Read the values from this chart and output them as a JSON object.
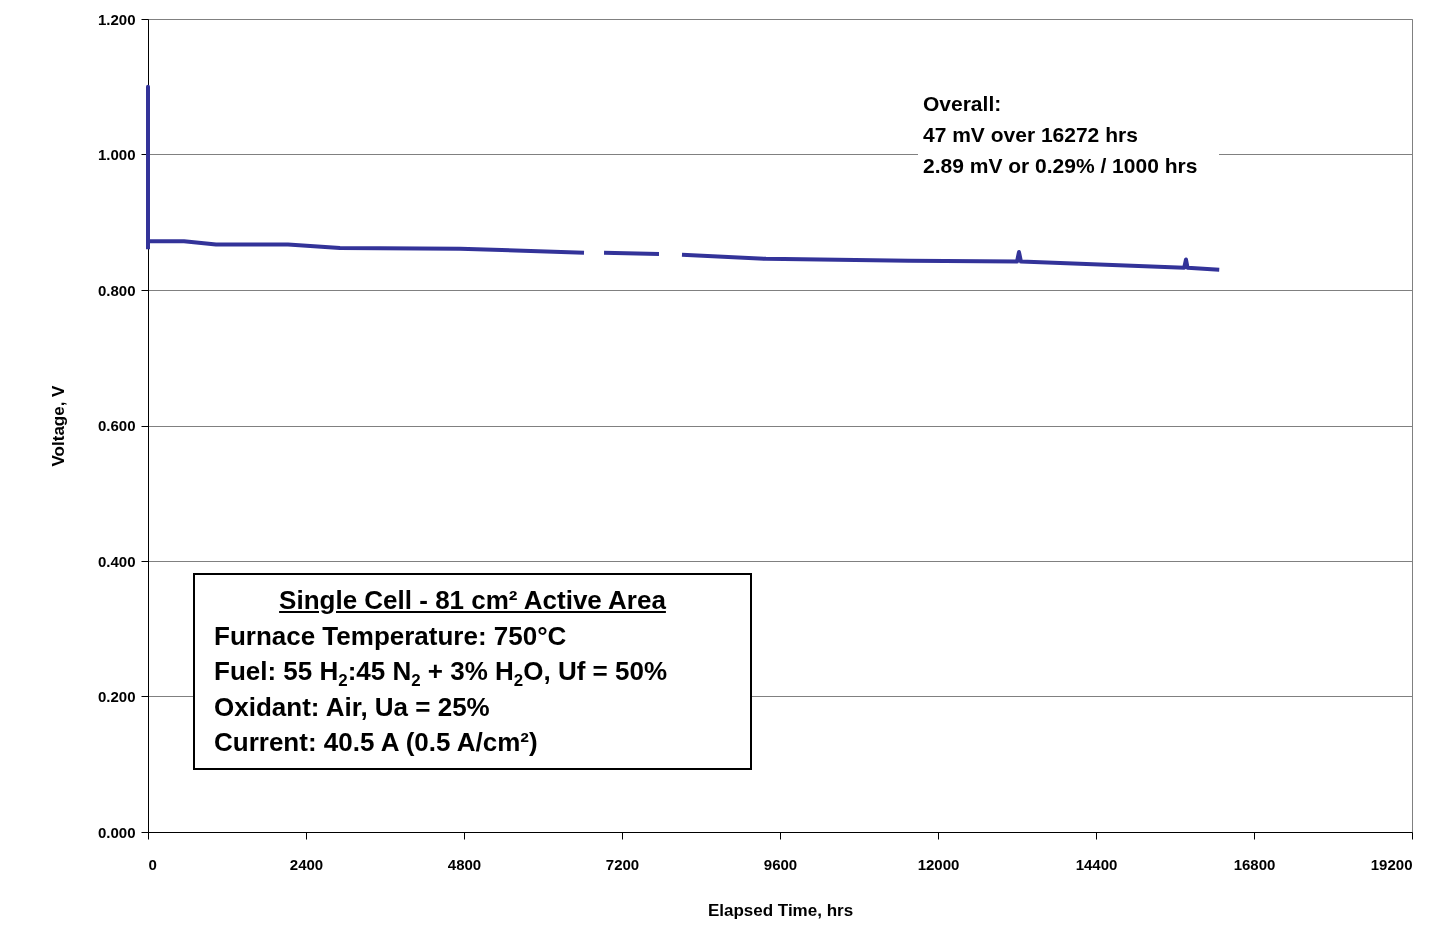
{
  "chart_data": {
    "type": "line",
    "xlabel": "Elapsed Time, hrs",
    "ylabel": "Voltage, V",
    "x": [
      0,
      0,
      0,
      30,
      547,
      1033,
      2127,
      2916,
      4739,
      6623,
      6700,
      6927,
      7762,
      7900,
      8111,
      9387,
      11560,
      13200,
      13230,
      13260,
      15740,
      15767,
      15790,
      16272
    ],
    "series": [
      {
        "color": "#333399",
        "values": [
          0.86,
          1.1,
          0.872,
          0.872,
          0.872,
          0.867,
          0.867,
          0.862,
          0.861,
          0.855,
          null,
          0.855,
          0.853,
          null,
          0.852,
          0.846,
          0.843,
          0.842,
          0.856,
          0.842,
          0.833,
          0.845,
          0.833,
          0.83
        ]
      }
    ],
    "xlim": [
      0,
      19200
    ],
    "xticks": [
      0,
      2400,
      4800,
      7200,
      9600,
      12000,
      14400,
      16800,
      19200
    ],
    "ylim": [
      0,
      1.2
    ],
    "yticks": [
      {
        "value": 0,
        "label": "0.000"
      },
      {
        "value": 0.2,
        "label": "0.200"
      },
      {
        "value": 0.4,
        "label": "0.400"
      },
      {
        "value": 0.6,
        "label": "0.600"
      },
      {
        "value": 0.8,
        "label": "0.800"
      },
      {
        "value": 1.0,
        "label": "1.000"
      },
      {
        "value": 1.2,
        "label": "1.200"
      }
    ],
    "grid": "y",
    "marker": "none",
    "line_style": "solid",
    "annotations": [
      "Overall:\n47 mV over 16272 hrs\n2.89 mV or 0.29% / 1000 hrs",
      "Single Cell - 81 cm² Active Area\nFurnace Temperature: 750°C\nFuel: 55 H$_{2}$:45 N$_{2}$ + 3% H$_{2}$O, Uf = 50%\nOxidant: Air, Ua = 25%\nCurrent: 40.5 A (0.5 A/cm²)"
    ]
  }
}
